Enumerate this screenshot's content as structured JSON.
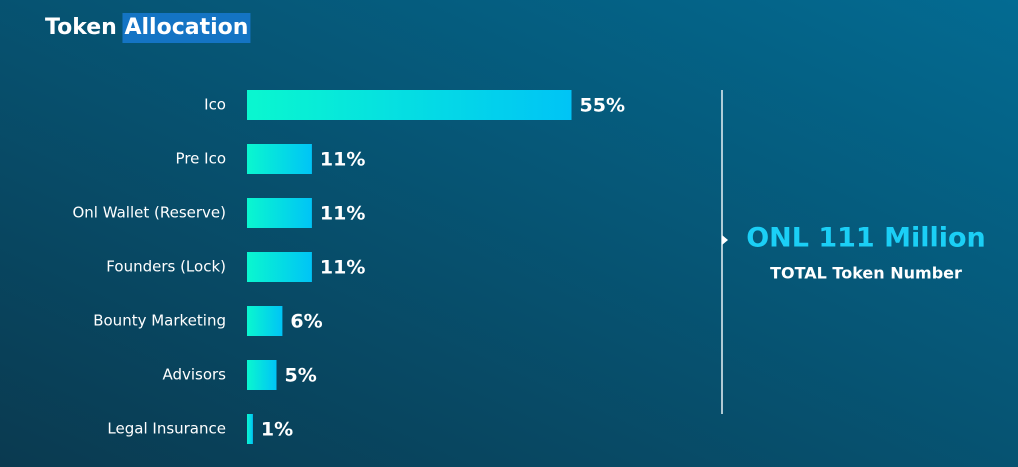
{
  "chart_data": {
    "type": "bar",
    "orientation": "horizontal",
    "title": "Token Allocation",
    "categories": [
      "Ico",
      "Pre Ico",
      "Onl Wallet (Reserve)",
      "Founders (Lock)",
      "Bounty Marketing",
      "Advisors",
      "Legal Insurance"
    ],
    "values": [
      55,
      11,
      11,
      11,
      6,
      5,
      1
    ],
    "value_labels": [
      "55%",
      "11%",
      "11%",
      "11%",
      "6%",
      "5%",
      "1%"
    ],
    "colors": [
      "#0af7cf",
      "#00c4f6"
    ],
    "annotations": [
      "ONL 111 Million",
      "TOTAL Token Number"
    ]
  }
}
